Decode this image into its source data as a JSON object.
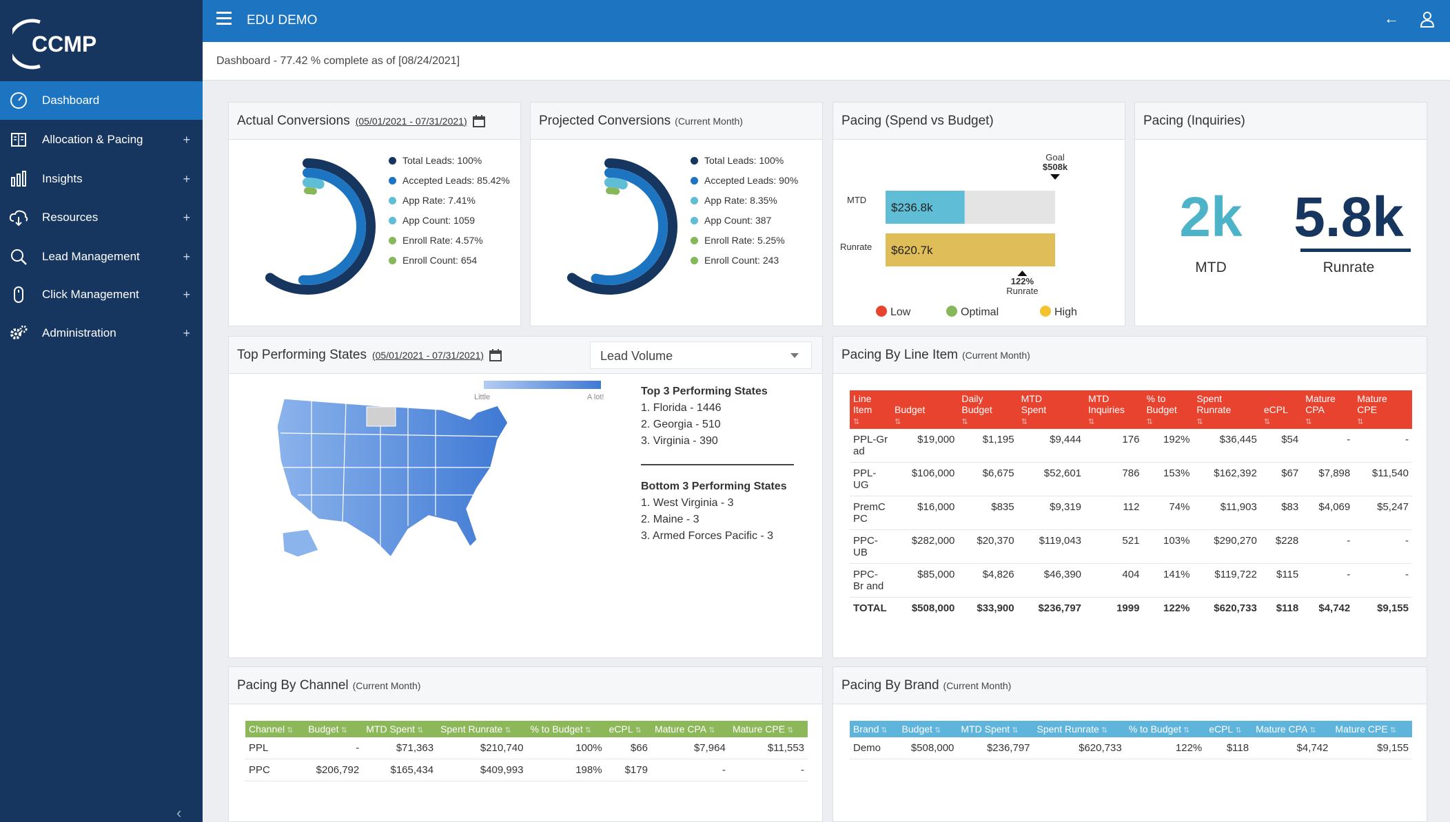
{
  "app": {
    "logo_text": "CCMP",
    "title": "EDU DEMO"
  },
  "status_text": "Dashboard - 77.42 % complete as of [08/24/2021]",
  "sidebar": {
    "items": [
      {
        "label": "Dashboard",
        "icon": "speedometer-icon",
        "active": true
      },
      {
        "label": "Allocation & Pacing",
        "icon": "book-icon"
      },
      {
        "label": "Insights",
        "icon": "bar-chart-icon"
      },
      {
        "label": "Resources",
        "icon": "cloud-download-icon"
      },
      {
        "label": "Lead Management",
        "icon": "search-icon"
      },
      {
        "label": "Click Management",
        "icon": "mouse-icon"
      },
      {
        "label": "Administration",
        "icon": "gears-icon"
      }
    ],
    "plus": "+"
  },
  "actual_conversions": {
    "title": "Actual Conversions",
    "date_range": "(05/01/2021 - 07/31/2021)",
    "legend": [
      "Total Leads: 100%",
      "Accepted Leads: 85.42%",
      "App Rate: 7.41%",
      "App Count: 1059",
      "Enroll Rate: 4.57%",
      "Enroll Count: 654"
    ],
    "rings": [
      1.0,
      0.8542,
      0.0741,
      0.0457
    ]
  },
  "projected_conversions": {
    "title": "Projected Conversions",
    "subtitle": "(Current Month)",
    "legend": [
      "Total Leads: 100%",
      "Accepted Leads: 90%",
      "App Rate: 8.35%",
      "App Count: 387",
      "Enroll Rate: 5.25%",
      "Enroll Count: 243"
    ],
    "rings": [
      1.0,
      0.9,
      0.0835,
      0.0525
    ]
  },
  "ring_colors": [
    "#16365f",
    "#1d74c1",
    "#5fbdd6",
    "#86b85a"
  ],
  "pacing_spend": {
    "title": "Pacing (Spend vs Budget)",
    "goal_label": "Goal",
    "goal_value": "$508k",
    "mtd_label": "MTD",
    "mtd_value": "$236.8k",
    "runrate_label": "Runrate",
    "runrate_value": "$620.7k",
    "runrate_pct": "122%",
    "runrate_pct_label": "Runrate",
    "mtd_amount": 236.8,
    "runrate_amount": 620.7,
    "goal_amount": 508,
    "legend": [
      {
        "label": "Low",
        "color": "#e8432f"
      },
      {
        "label": "Optimal",
        "color": "#86b85a"
      },
      {
        "label": "High",
        "color": "#f2c230"
      }
    ]
  },
  "pacing_inquiries": {
    "title": "Pacing (Inquiries)",
    "mtd_value": "2k",
    "mtd_label": "MTD",
    "runrate_value": "5.8k",
    "runrate_label": "Runrate",
    "mtd_color": "#4db3c8",
    "runrate_color": "#16365f"
  },
  "top_states": {
    "title": "Top Performing States",
    "date_range": "(05/01/2021 - 07/31/2021)",
    "dropdown_value": "Lead Volume",
    "scale_low": "Little",
    "scale_high": "A lot!",
    "top_header": "Top 3 Performing States",
    "top": [
      "1. Florida - 1446",
      "2. Georgia - 510",
      "3. Virginia - 390"
    ],
    "bottom_header": "Bottom 3 Performing States",
    "bottom": [
      "1. West Virginia - 3",
      "2. Maine - 3",
      "3. Armed Forces Pacific - 3"
    ]
  },
  "line_item": {
    "title": "Pacing By Line Item",
    "subtitle": "(Current Month)",
    "header_color": "#e8432f",
    "columns": [
      [
        "Line",
        "Item"
      ],
      [
        "",
        "Budget"
      ],
      [
        "Daily",
        "Budget"
      ],
      [
        "MTD",
        "Spent"
      ],
      [
        "MTD",
        "Inquiries"
      ],
      [
        "% to",
        "Budget"
      ],
      [
        "Spent",
        "Runrate"
      ],
      [
        "",
        "eCPL"
      ],
      [
        "Mature",
        "CPA"
      ],
      [
        "Mature",
        "CPE"
      ]
    ],
    "rows": [
      [
        "PPL-Gr ad",
        "$19,000",
        "$1,195",
        "$9,444",
        "176",
        "192%",
        "$36,445",
        "$54",
        "-",
        "-"
      ],
      [
        "PPL-UG",
        "$106,000",
        "$6,675",
        "$52,601",
        "786",
        "153%",
        "$162,392",
        "$67",
        "$7,898",
        "$11,540"
      ],
      [
        "PremC PC",
        "$16,000",
        "$835",
        "$9,319",
        "112",
        "74%",
        "$11,903",
        "$83",
        "$4,069",
        "$5,247"
      ],
      [
        "PPC-UB",
        "$282,000",
        "$20,370",
        "$119,043",
        "521",
        "103%",
        "$290,270",
        "$228",
        "-",
        "-"
      ],
      [
        "PPC-Br and",
        "$85,000",
        "$4,826",
        "$46,390",
        "404",
        "141%",
        "$119,722",
        "$115",
        "-",
        "-"
      ]
    ],
    "total": [
      "TOTAL",
      "$508,000",
      "$33,900",
      "$236,797",
      "1999",
      "122%",
      "$620,733",
      "$118",
      "$4,742",
      "$9,155"
    ]
  },
  "channel": {
    "title": "Pacing By Channel",
    "subtitle": "(Current Month)",
    "header_color": "#8cb85a",
    "columns": [
      "Channel",
      "Budget",
      "MTD Spent",
      "Spent Runrate",
      "% to Budget",
      "eCPL",
      "Mature CPA",
      "Mature CPE"
    ],
    "rows": [
      [
        "PPL",
        "-",
        "$71,363",
        "$210,740",
        "100%",
        "$66",
        "$7,964",
        "$11,553"
      ],
      [
        "PPC",
        "$206,792",
        "$165,434",
        "$409,993",
        "198%",
        "$179",
        "-",
        "-"
      ]
    ]
  },
  "brand": {
    "title": "Pacing By Brand",
    "subtitle": "(Current Month)",
    "header_color": "#5fb4dc",
    "columns": [
      "Brand",
      "Budget",
      "MTD Spent",
      "Spent Runrate",
      "% to Budget",
      "eCPL",
      "Mature CPA",
      "Mature CPE"
    ],
    "rows": [
      [
        "Demo",
        "$508,000",
        "$236,797",
        "$620,733",
        "122%",
        "$118",
        "$4,742",
        "$9,155"
      ]
    ]
  }
}
